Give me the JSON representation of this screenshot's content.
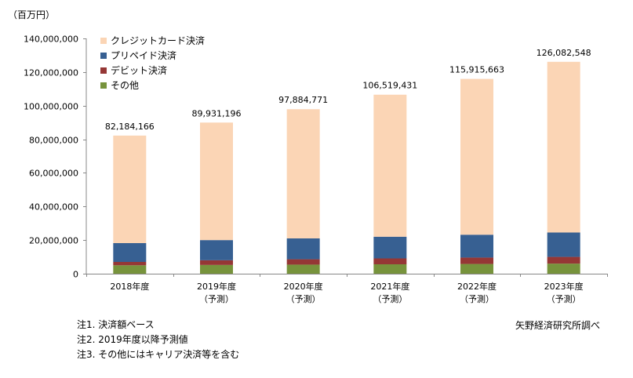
{
  "unit_label": "（百万円）",
  "source": "矢野経済研究所調べ",
  "notes": [
    "注1. 決済額ベース",
    "注2. 2019年度以降予測値",
    "注3. その他にはキャリア決済等を含む"
  ],
  "colors": {
    "credit": "#fbd5b5",
    "prepaid": "#376092",
    "debit": "#953735",
    "other": "#77933c",
    "axis": "#888888"
  },
  "chart_data": {
    "type": "bar",
    "stacked": true,
    "categories": [
      [
        "2018年度"
      ],
      [
        "2019年度",
        "（予測）"
      ],
      [
        "2020年度",
        "（予測）"
      ],
      [
        "2021年度",
        "（予測）"
      ],
      [
        "2022年度",
        "（予測）"
      ],
      [
        "2023年度",
        "（予測）"
      ]
    ],
    "series": [
      {
        "name": "その他",
        "key": "other",
        "values": [
          5000000,
          5200000,
          5400000,
          5600000,
          5800000,
          6000000
        ]
      },
      {
        "name": "デビット決済",
        "key": "debit",
        "values": [
          2000000,
          2800000,
          3200000,
          3500000,
          3800000,
          4000000
        ]
      },
      {
        "name": "プリペイド決済",
        "key": "prepaid",
        "values": [
          11200000,
          12000000,
          12400000,
          12900000,
          13600000,
          14500000
        ]
      },
      {
        "name": "クレジットカード決済",
        "key": "credit",
        "values": [
          63984166,
          69931196,
          76884771,
          84519431,
          92715663,
          101582548
        ]
      }
    ],
    "totals": [
      82184166,
      89931196,
      97884771,
      106519431,
      115915663,
      126082548
    ],
    "total_labels": [
      "82,184,166",
      "89,931,196",
      "97,884,771",
      "106,519,431",
      "115,915,663",
      "126,082,548"
    ],
    "y_ticks": [
      "0",
      "20,000,000",
      "40,000,000",
      "60,000,000",
      "80,000,000",
      "100,000,000",
      "120,000,000",
      "140,000,000"
    ],
    "ylim": [
      0,
      140000000
    ],
    "legend": [
      "クレジットカード決済",
      "プリペイド決済",
      "デビット決済",
      "その他"
    ],
    "legend_position": "top-left"
  }
}
